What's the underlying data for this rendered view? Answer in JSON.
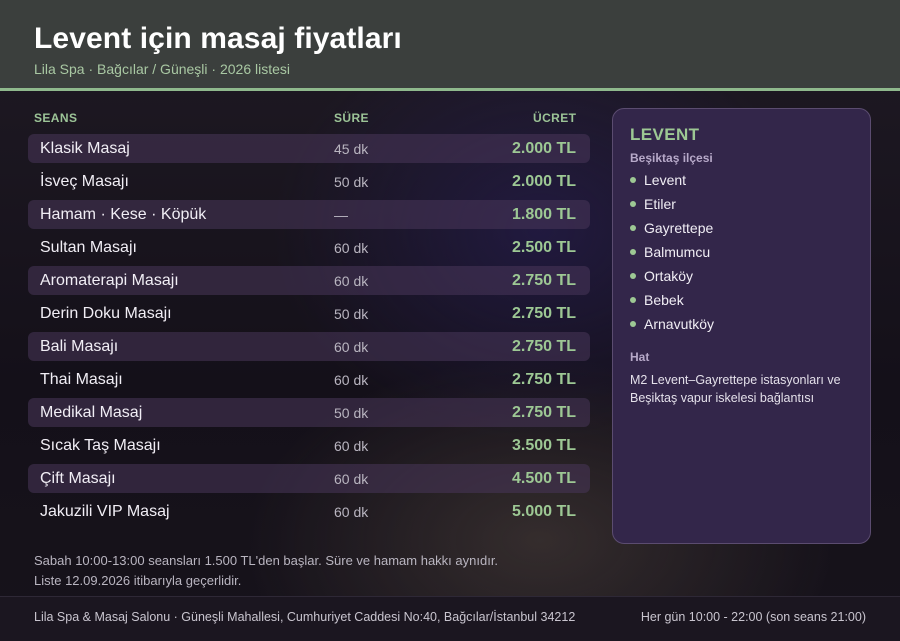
{
  "header": {
    "title": "Levent için masaj fiyatları",
    "subtitle": "Lila Spa · Bağcılar / Güneşli · 2026 listesi"
  },
  "table": {
    "columns": {
      "session": "SEANS",
      "duration": "SÜRE",
      "price": "ÜCRET"
    },
    "rows": [
      {
        "name": "Klasik Masaj",
        "duration": "45 dk",
        "price": "2.000 TL"
      },
      {
        "name": "İsveç Masajı",
        "duration": "50 dk",
        "price": "2.000 TL"
      },
      {
        "name": "Hamam · Kese · Köpük",
        "duration": "—",
        "price": "1.800 TL"
      },
      {
        "name": "Sultan Masajı",
        "duration": "60 dk",
        "price": "2.500 TL"
      },
      {
        "name": "Aromaterapi Masajı",
        "duration": "60 dk",
        "price": "2.750 TL"
      },
      {
        "name": "Derin Doku Masajı",
        "duration": "50 dk",
        "price": "2.750 TL"
      },
      {
        "name": "Bali Masajı",
        "duration": "60 dk",
        "price": "2.750 TL"
      },
      {
        "name": "Thai Masajı",
        "duration": "60 dk",
        "price": "2.750 TL"
      },
      {
        "name": "Medikal Masaj",
        "duration": "50 dk",
        "price": "2.750 TL"
      },
      {
        "name": "Sıcak Taş Masajı",
        "duration": "60 dk",
        "price": "3.500 TL"
      },
      {
        "name": "Çift Masajı",
        "duration": "60 dk",
        "price": "4.500 TL"
      },
      {
        "name": "Jakuzili VIP Masaj",
        "duration": "60 dk",
        "price": "5.000 TL"
      }
    ]
  },
  "notes": {
    "line1": "Sabah 10:00-13:00 seansları 1.500 TL'den başlar. Süre ve hamam hakkı aynıdır.",
    "line2": "Liste 12.09.2026 itibarıyla geçerlidir."
  },
  "panel": {
    "title": "LEVENT",
    "district": "Beşiktaş ilçesi",
    "areas": [
      "Levent",
      "Etiler",
      "Gayrettepe",
      "Balmumcu",
      "Ortaköy",
      "Bebek",
      "Arnavutköy"
    ],
    "transit_label": "Hat",
    "transit_text": "M2 Levent–Gayrettepe istasyonları ve Beşiktaş vapur iskelesi bağlantısı"
  },
  "footer": {
    "address": "Lila Spa & Masaj Salonu · Güneşli Mahallesi, Cumhuriyet Caddesi No:40, Bağcılar/İstanbul 34212",
    "hours": "Her gün 10:00 - 22:00 (son seans 21:00)"
  },
  "colors": {
    "accent": "#9dc894",
    "header_bg": "#3b3f3d",
    "panel_bg": "#33264a"
  }
}
